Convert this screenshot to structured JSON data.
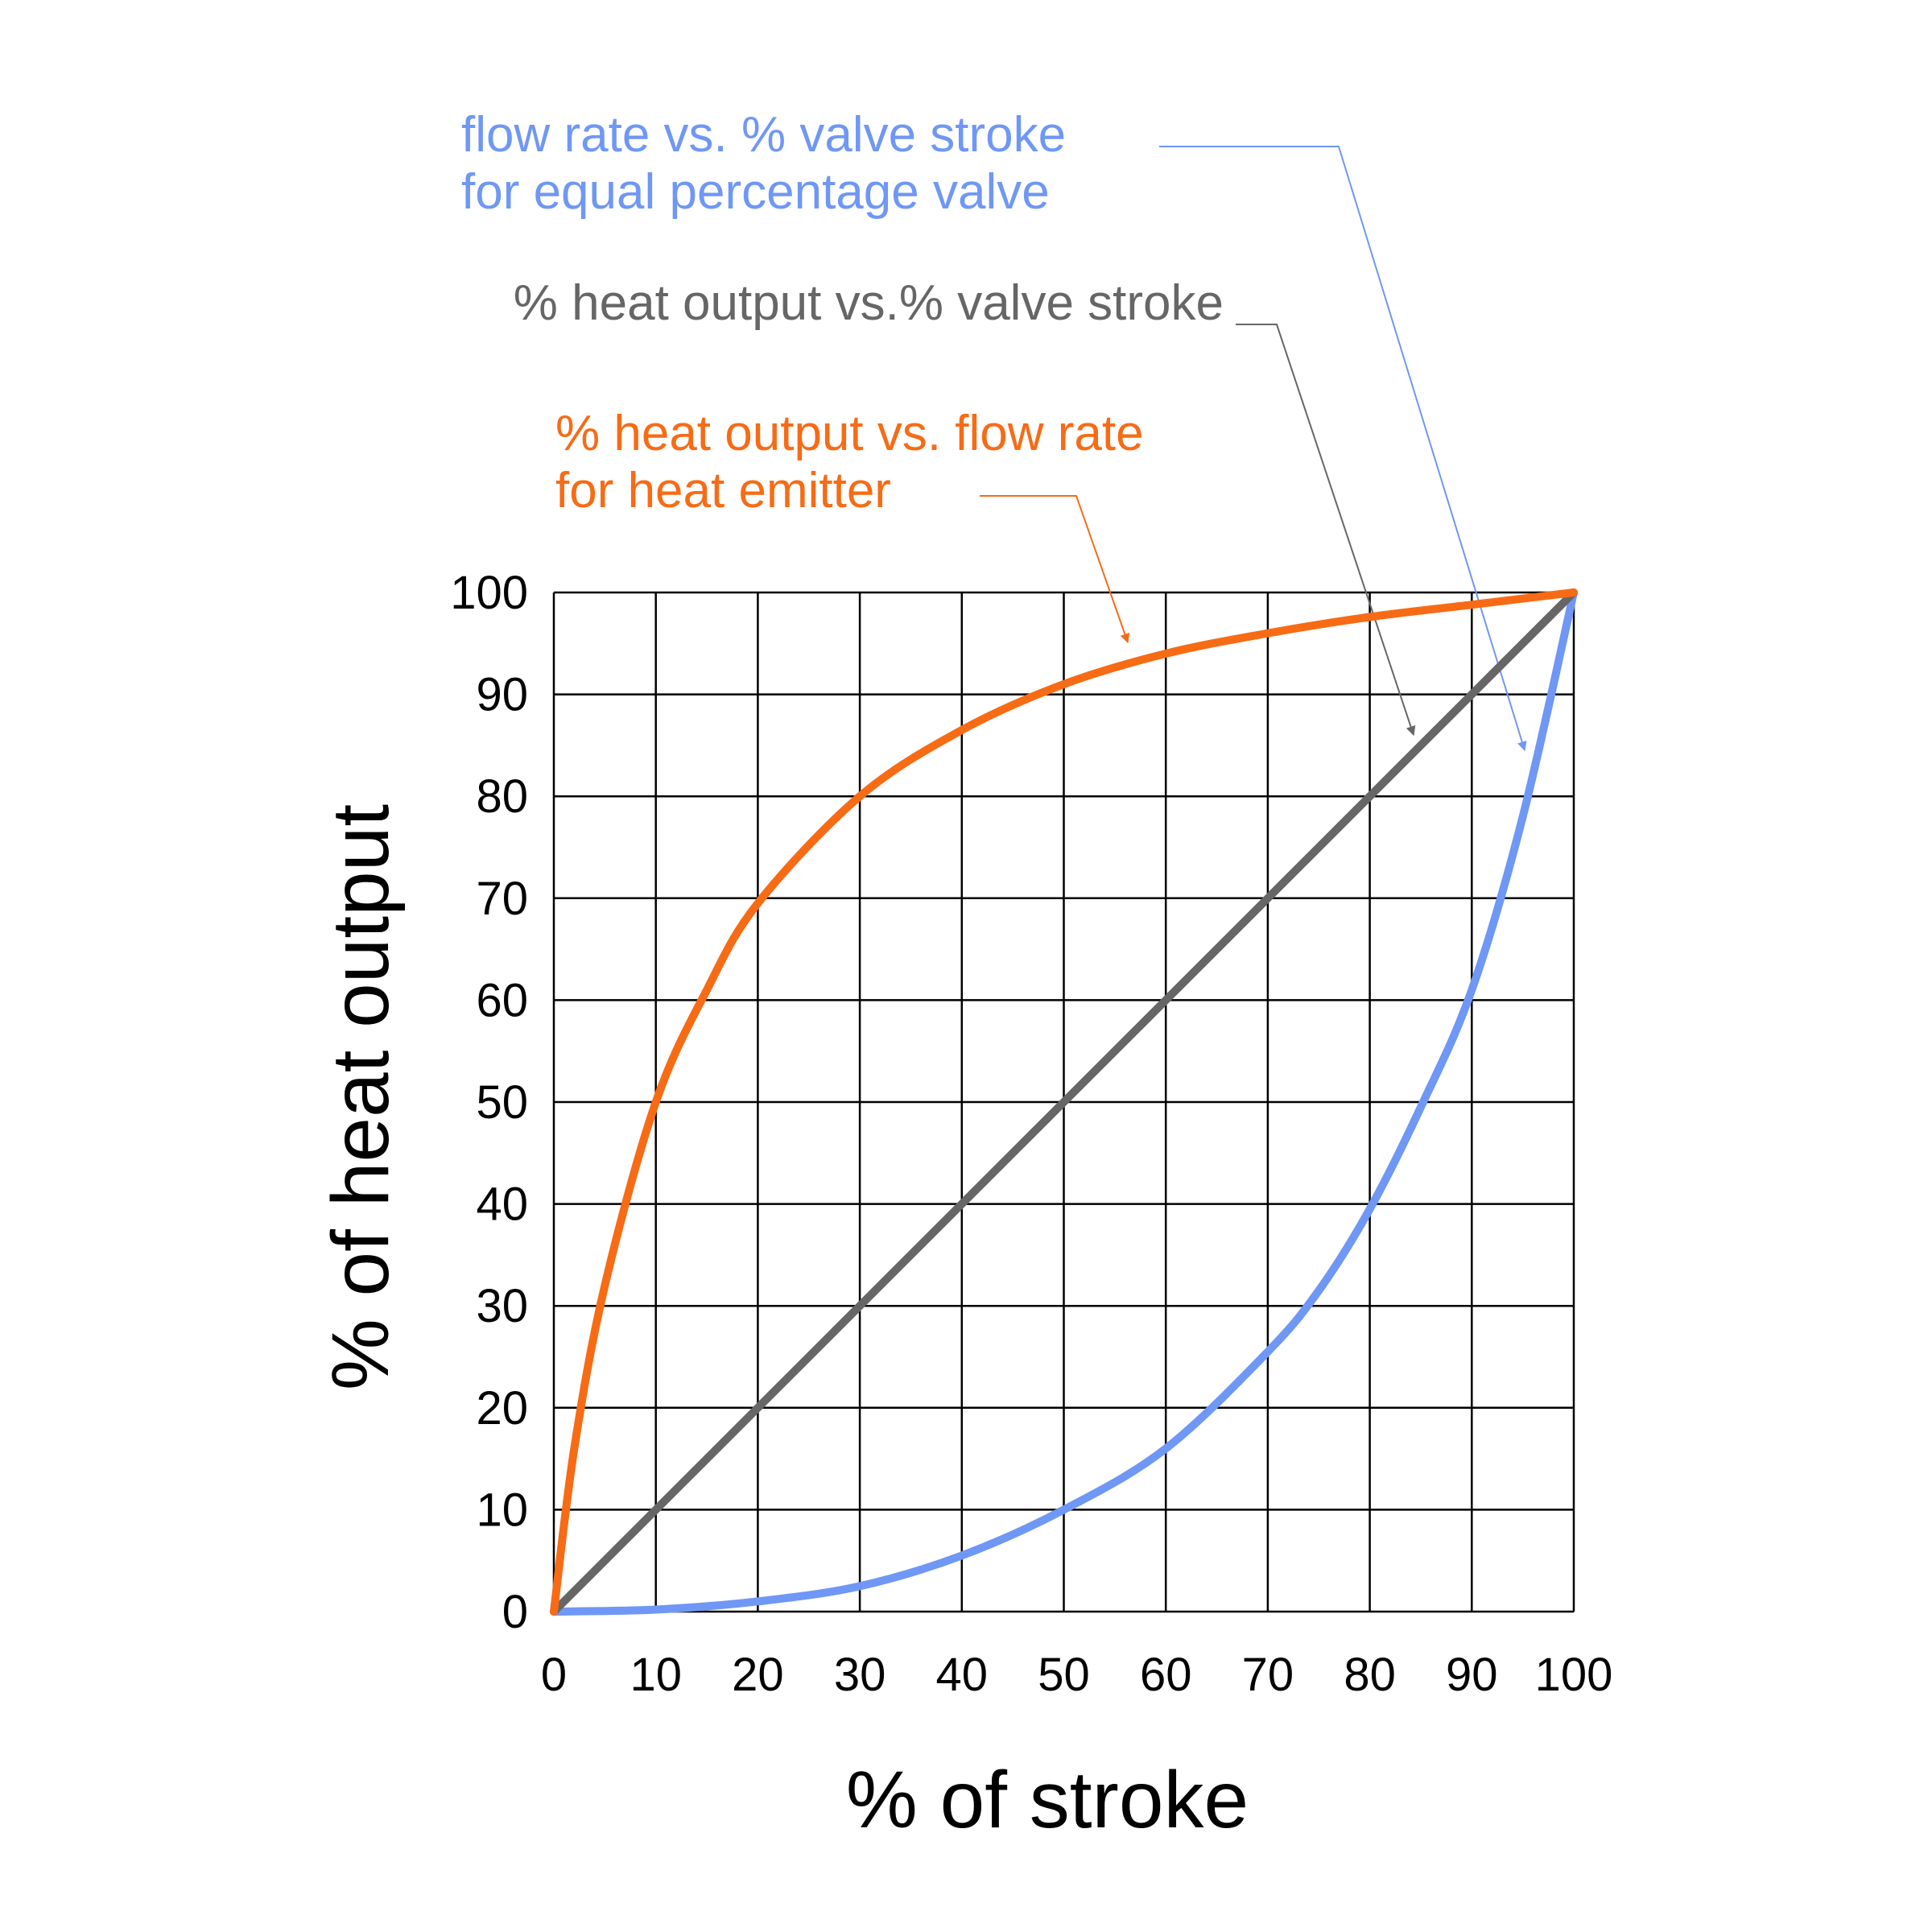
{
  "chart_data": {
    "type": "line",
    "x_label": "% of stroke",
    "y_label": "% of heat output",
    "xlim": [
      0,
      100
    ],
    "ylim": [
      0,
      100
    ],
    "xticks": [
      0,
      10,
      20,
      30,
      40,
      50,
      60,
      70,
      80,
      90,
      100
    ],
    "yticks": [
      0,
      10,
      20,
      30,
      40,
      50,
      60,
      70,
      80,
      90,
      100
    ],
    "grid": true,
    "series": [
      {
        "annotation": [
          "flow rate vs. % valve stroke",
          "for  equal percentage valve"
        ],
        "color": "#6f97f5",
        "x": [
          0,
          10,
          20,
          30,
          40,
          50,
          60,
          70,
          75,
          80,
          85,
          90,
          95,
          100
        ],
        "values": [
          0,
          0.2,
          1,
          2.5,
          5.5,
          10,
          16,
          25.5,
          31.5,
          39.5,
          49.5,
          61,
          78,
          100
        ]
      },
      {
        "annotation": [
          "% heat output vs.% valve stroke"
        ],
        "color": "#666666",
        "x": [
          0,
          100
        ],
        "values": [
          0,
          100
        ]
      },
      {
        "annotation": [
          "% heat output vs. flow rate",
          "for  heat emitter"
        ],
        "color": "#f76b15",
        "x": [
          0,
          2,
          5,
          10,
          15,
          20,
          30,
          40,
          50,
          60,
          70,
          80,
          90,
          100
        ],
        "values": [
          0,
          16,
          32,
          50,
          61,
          69.5,
          80,
          86.5,
          91,
          94,
          96,
          97.6,
          98.8,
          100
        ]
      }
    ]
  }
}
